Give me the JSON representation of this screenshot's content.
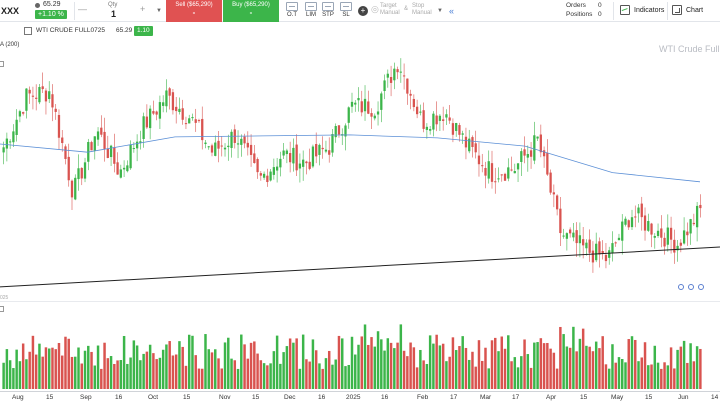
{
  "toolbar": {
    "symbol": "XXX",
    "last_price": "65.29",
    "change": "+1.10 %",
    "qty_label": "Qty",
    "qty_value": "1",
    "sell_label": "Sell ($65,290)",
    "sell_value": "-",
    "buy_label": "Buy ($65,290)",
    "buy_value": "-",
    "order_types": [
      "O.T",
      "LIM",
      "STP",
      "SL"
    ],
    "target_label": "Target Manual",
    "stop_label": "Stop Manual",
    "amp": "&",
    "orders_label": "Orders",
    "orders_count": "0",
    "positions_label": "Positions",
    "positions_count": "0",
    "indicators_label": "Indicators",
    "chart_label": "Chart"
  },
  "legend": {
    "name": "WTI CRUDE FULL0725",
    "price": "65.29",
    "change": "1.10 %",
    "ma_label": "A (200)",
    "watermark": "WTI Crude Full",
    "vol_label": "025"
  },
  "colors": {
    "up": "#3cb54a",
    "down": "#d9534f",
    "ma": "#5b8fd6",
    "trend": "#222222"
  },
  "x_axis_labels": [
    "Aug",
    "15",
    "Sep",
    "16",
    "Oct",
    "15",
    "Nov",
    "15",
    "Dec",
    "16",
    "2025",
    "16",
    "Feb",
    "17",
    "Mar",
    "17",
    "Apr",
    "15",
    "May",
    "15",
    "Jun",
    "14"
  ],
  "chart_data": {
    "type": "candlestick",
    "title": "",
    "xlabel": "",
    "ylabel": "",
    "grid": false,
    "anchor_closes": [
      71.5,
      76.5,
      77.0,
      67.0,
      73.2,
      69.0,
      73.5,
      76.5,
      74.5,
      71.0,
      72.8,
      68.2,
      70.8,
      70.0,
      71.5,
      75.5,
      75.5,
      80.0,
      74.0,
      75.0,
      71.5,
      69.0,
      69.4,
      72.2,
      63.0,
      61.5,
      60.5,
      65.0,
      63.5,
      62.0,
      65.3
    ],
    "ma_200": [
      71.8,
      71.0,
      72.5,
      72.6,
      72.7,
      72.4,
      71.6,
      69.0,
      68.1
    ],
    "trend_line": [
      57.8,
      61.7
    ],
    "volume_relative": "shown"
  }
}
